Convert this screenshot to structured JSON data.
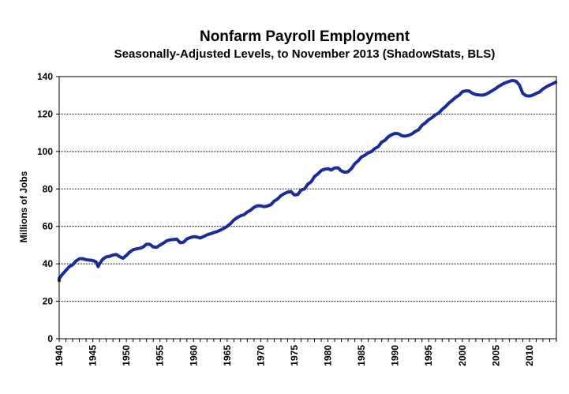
{
  "chart_data": {
    "type": "line",
    "title": "Nonfarm Payroll Employment",
    "subtitle": "Seasonally-Adjusted Levels, to November 2013 (ShadowStats, BLS)",
    "xlabel": "",
    "ylabel": "Millions of Jobs",
    "xlim": [
      1940,
      2014
    ],
    "ylim": [
      0,
      140
    ],
    "yticks": [
      "0",
      "20",
      "40",
      "60",
      "80",
      "100",
      "120",
      "140"
    ],
    "xticks": [
      "1940",
      "1945",
      "1950",
      "1955",
      "1960",
      "1965",
      "1970",
      "1975",
      "1980",
      "1985",
      "1990",
      "1995",
      "2000",
      "2005",
      "2010"
    ],
    "grid": "horizontal",
    "legend": "none",
    "line_color": "#1c2a9a",
    "series": [
      {
        "x": [
          1939.0,
          1939.5,
          1940.0,
          1940.5,
          1941.0,
          1941.5,
          1942.0,
          1942.5,
          1943.0,
          1943.5,
          1944.0,
          1944.5,
          1945.0,
          1945.5,
          1945.8,
          1946.0,
          1946.5,
          1947.0,
          1947.5,
          1948.0,
          1948.5,
          1949.0,
          1949.5,
          1950.0,
          1950.5,
          1951.0,
          1951.5,
          1952.0,
          1952.5,
          1953.0,
          1953.5,
          1954.0,
          1954.5,
          1955.0,
          1955.5,
          1956.0,
          1956.5,
          1957.0,
          1957.5,
          1958.0,
          1958.5,
          1959.0,
          1959.5,
          1960.0,
          1960.5,
          1961.0,
          1961.5,
          1962.0,
          1962.5,
          1963.0,
          1963.5,
          1964.0,
          1964.5,
          1965.0,
          1965.5,
          1966.0,
          1966.5,
          1967.0,
          1967.5,
          1968.0,
          1968.5,
          1969.0,
          1969.5,
          1970.0,
          1970.5,
          1971.0,
          1971.5,
          1972.0,
          1972.5,
          1973.0,
          1973.5,
          1974.0,
          1974.5,
          1975.0,
          1975.5,
          1976.0,
          1976.5,
          1977.0,
          1977.5,
          1978.0,
          1978.5,
          1979.0,
          1979.5,
          1980.0,
          1980.5,
          1981.0,
          1981.5,
          1982.0,
          1982.5,
          1983.0,
          1983.5,
          1984.0,
          1984.5,
          1985.0,
          1985.5,
          1986.0,
          1986.5,
          1987.0,
          1987.5,
          1988.0,
          1988.5,
          1989.0,
          1989.5,
          1990.0,
          1990.5,
          1991.0,
          1991.5,
          1992.0,
          1992.5,
          1993.0,
          1993.5,
          1994.0,
          1994.5,
          1995.0,
          1995.5,
          1996.0,
          1996.5,
          1997.0,
          1997.5,
          1998.0,
          1998.5,
          1999.0,
          1999.5,
          2000.0,
          2000.5,
          2001.0,
          2001.5,
          2002.0,
          2002.5,
          2003.0,
          2003.5,
          2004.0,
          2004.5,
          2005.0,
          2005.5,
          2006.0,
          2006.5,
          2007.0,
          2007.5,
          2008.0,
          2008.5,
          2009.0,
          2009.5,
          2010.0,
          2010.5,
          2011.0,
          2011.5,
          2012.0,
          2012.5,
          2013.0,
          2013.5,
          2013.9
        ],
        "values": [
          31.0,
          31.5,
          32.2,
          34.5,
          36.5,
          38.5,
          39.5,
          41.5,
          42.7,
          42.8,
          42.2,
          42.0,
          41.8,
          41.0,
          38.5,
          40.0,
          42.5,
          43.7,
          44.0,
          44.7,
          45.0,
          43.8,
          43.0,
          44.5,
          46.3,
          47.5,
          48.0,
          48.3,
          49.0,
          50.5,
          50.4,
          49.0,
          48.8,
          50.0,
          51.0,
          52.3,
          52.8,
          53.0,
          53.2,
          51.3,
          51.5,
          53.3,
          54.0,
          54.5,
          54.3,
          53.8,
          54.6,
          55.5,
          56.0,
          56.7,
          57.2,
          58.0,
          59.0,
          60.0,
          61.5,
          63.4,
          64.7,
          65.7,
          66.2,
          67.7,
          68.7,
          70.2,
          71.0,
          71.0,
          70.5,
          70.9,
          71.6,
          73.5,
          74.6,
          76.4,
          77.5,
          78.3,
          78.6,
          76.8,
          77.0,
          79.4,
          80.0,
          82.5,
          83.8,
          86.6,
          88.0,
          89.8,
          90.5,
          90.8,
          90.1,
          91.2,
          91.3,
          89.6,
          88.9,
          89.2,
          90.9,
          93.5,
          95.0,
          97.1,
          98.0,
          99.3,
          100.0,
          101.6,
          102.6,
          105.0,
          106.0,
          107.9,
          109.0,
          109.7,
          109.5,
          108.4,
          108.2,
          108.6,
          109.4,
          110.7,
          111.6,
          114.0,
          115.3,
          117.0,
          118.1,
          119.6,
          120.5,
          122.5,
          124.0,
          125.9,
          127.3,
          128.9,
          130.0,
          131.9,
          132.4,
          132.3,
          131.1,
          130.4,
          130.2,
          130.1,
          130.5,
          131.5,
          132.6,
          133.7,
          135.0,
          136.0,
          136.8,
          137.5,
          137.9,
          137.5,
          135.5,
          131.0,
          129.8,
          129.6,
          130.1,
          131.0,
          131.8,
          133.4,
          134.5,
          135.5,
          136.3,
          137.0
        ]
      }
    ]
  }
}
